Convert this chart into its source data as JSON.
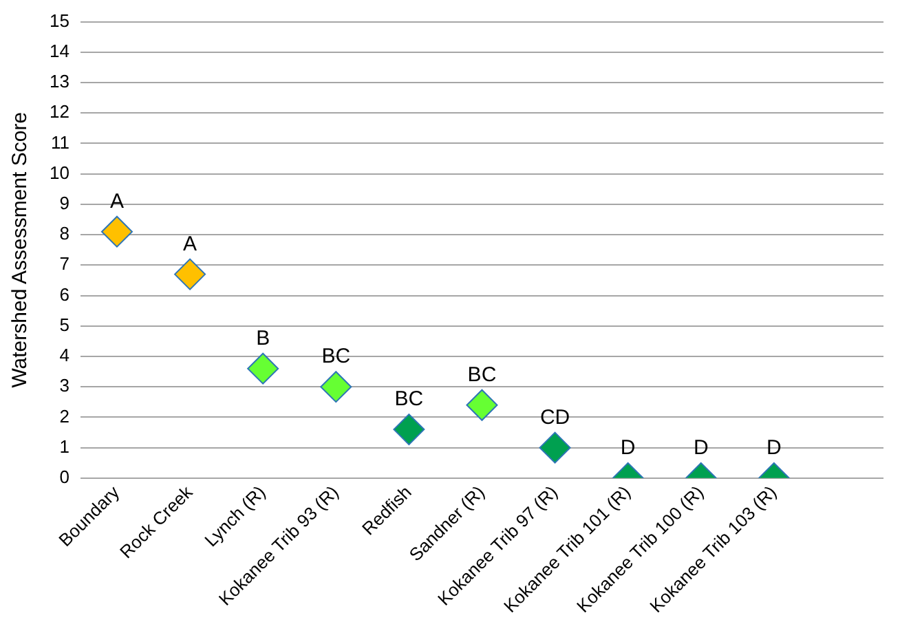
{
  "chart_data": {
    "type": "scatter",
    "ylabel": "Watershed Assessment Score",
    "categories": [
      "Boundary",
      "Rock Creek",
      "Lynch (R)",
      "Kokanee Trib 93 (R)",
      "Redfish",
      "Sandner (R)",
      "Kokanee Trib 97 (R)",
      "Kokanee Trib 101 (R)",
      "Kokanee Trib 100 (R)",
      "Kokanee Trib 103 (R)",
      null
    ],
    "values": [
      8.1,
      6.7,
      3.6,
      3.0,
      1.6,
      2.4,
      1.0,
      0,
      0,
      0,
      null
    ],
    "colors": [
      "#ffc000",
      "#ffc000",
      "#66ff33",
      "#66ff33",
      "#00a050",
      "#66ff33",
      "#00a050",
      "#00a050",
      "#00a050",
      "#00a050",
      "#00a050"
    ],
    "ylim": [
      0,
      15
    ],
    "yticks": [
      0,
      1,
      2,
      3,
      4,
      5,
      6,
      7,
      8,
      9,
      10,
      11,
      12,
      13,
      14,
      15
    ],
    "grid": "y",
    "marker": "diamond",
    "annotations": [
      {
        "text": "A",
        "x": "Boundary",
        "y": 8.1
      },
      {
        "text": "A",
        "x": "Rock Creek",
        "y": 6.7
      },
      {
        "text": "B",
        "x": "Lynch (R)",
        "y": 3.6
      },
      {
        "text": "BC",
        "x": "Kokanee Trib 93 (R)",
        "y": 3.0
      },
      {
        "text": "BC",
        "x": "Redfish",
        "y": 1.6
      },
      {
        "text": "BC",
        "x": "Sandner (R)",
        "y": 2.4
      },
      {
        "text": "CD",
        "x": "Kokanee Trib 97 (R)",
        "y": 1.0
      },
      {
        "text": "D",
        "x": "Kokanee Trib 101 (R)",
        "y": 0
      },
      {
        "text": "D",
        "x": "Kokanee Trib 100 (R)",
        "y": 0
      },
      {
        "text": "D",
        "x": "Kokanee Trib 103 (R)",
        "y": 0
      }
    ]
  }
}
